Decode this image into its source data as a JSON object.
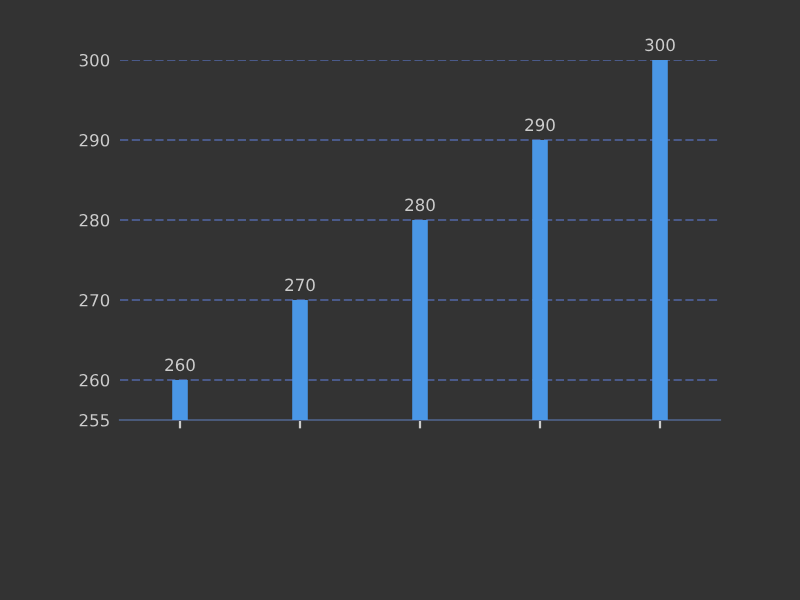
{
  "chart_data": {
    "type": "bar",
    "categories": [
      null,
      null,
      null,
      null,
      null
    ],
    "values": [
      260,
      270,
      280,
      290,
      300
    ],
    "color": "#4a97e6",
    "ylim": [
      255,
      300
    ],
    "yticks": [
      255,
      260,
      270,
      280,
      290,
      300
    ],
    "grid": "y",
    "data_labels": true
  }
}
